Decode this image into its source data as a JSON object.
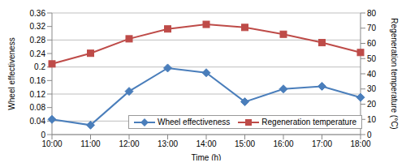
{
  "chart_data": {
    "type": "line",
    "x_label": "Time (h)",
    "y_label": "Wheel effectiveness",
    "y2_label": "Regeneration temperature (°C)",
    "categories": [
      "10:00",
      "11:00",
      "12:00",
      "13:00",
      "14:00",
      "15:00",
      "16:00",
      "17:00",
      "18:00"
    ],
    "series": [
      {
        "name": "Wheel effectiveness",
        "color": "#4a7ebb",
        "marker": "diamond",
        "values": [
          0.045,
          0.028,
          0.128,
          0.197,
          0.183,
          0.097,
          0.135,
          0.143,
          0.11
        ]
      },
      {
        "name": "Regeneration temperature",
        "color": "#be4b48",
        "marker": "square",
        "axis": "y2",
        "values": [
          46.5,
          53.5,
          63,
          69.5,
          72.5,
          70.5,
          66,
          60.5,
          54
        ]
      }
    ],
    "ylim": [
      0,
      0.36
    ],
    "yticks": [
      0,
      0.04,
      0.08,
      0.12,
      0.16,
      0.2,
      0.24,
      0.28,
      0.32,
      0.36
    ],
    "y2lim": [
      0,
      80
    ],
    "y2ticks": [
      0,
      10,
      20,
      30,
      40,
      50,
      60,
      70,
      80
    ],
    "grid": true,
    "legend": "bottom"
  }
}
